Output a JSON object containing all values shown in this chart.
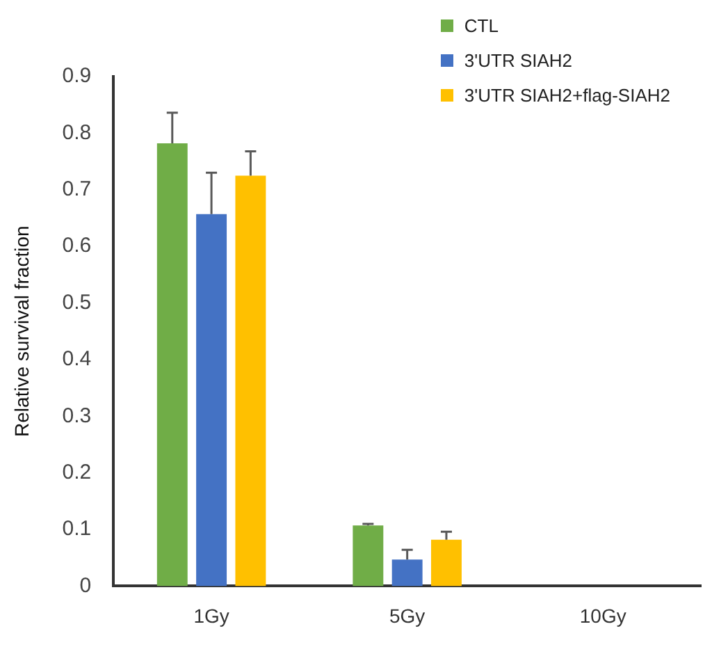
{
  "chart_data": {
    "type": "bar",
    "ylabel": "Relative survival fraction",
    "categories": [
      "1Gy",
      "5Gy",
      "10Gy"
    ],
    "series": [
      {
        "name": "CTL",
        "color": "#70ad47",
        "values": [
          0.782,
          0.107,
          0
        ],
        "errors": [
          0.054,
          0.003,
          null
        ]
      },
      {
        "name": "3'UTR SIAH2",
        "color": "#4472c4",
        "values": [
          0.657,
          0.047,
          0
        ],
        "errors": [
          0.073,
          0.017,
          null
        ]
      },
      {
        "name": "3'UTR SIAH2+flag-SIAH2",
        "color": "#ffc000",
        "values": [
          0.725,
          0.082,
          0
        ],
        "errors": [
          0.043,
          0.014,
          null
        ]
      }
    ],
    "ylim": [
      0,
      0.9
    ],
    "yticks": [
      0,
      0.1,
      0.2,
      0.3,
      0.4,
      0.5,
      0.6,
      0.7,
      0.8,
      0.9
    ],
    "grid": false,
    "legend": "top right"
  }
}
